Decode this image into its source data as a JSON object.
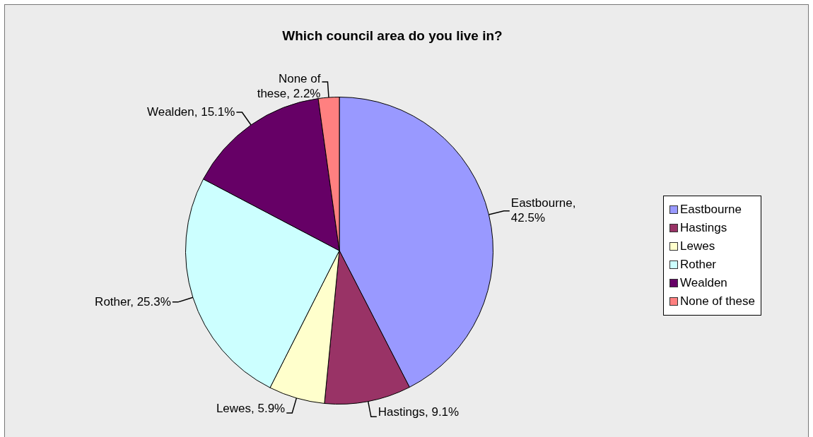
{
  "chart_data": {
    "type": "pie",
    "title": "Which council area do you live in?",
    "categories": [
      "Eastbourne",
      "Hastings",
      "Lewes",
      "Rother",
      "Wealden",
      "None of these"
    ],
    "values": [
      42.5,
      9.1,
      5.9,
      25.3,
      15.1,
      2.2
    ],
    "value_labels": [
      "Eastbourne, 42.5%",
      "Hastings, 9.1%",
      "Lewes, 5.9%",
      "Rother, 25.3%",
      "Wealden, 15.1%",
      "None of these, 2.2%"
    ],
    "colors": [
      "#9999ff",
      "#993366",
      "#ffffcc",
      "#ccffff",
      "#660066",
      "#ff8080"
    ],
    "legend": "right"
  }
}
